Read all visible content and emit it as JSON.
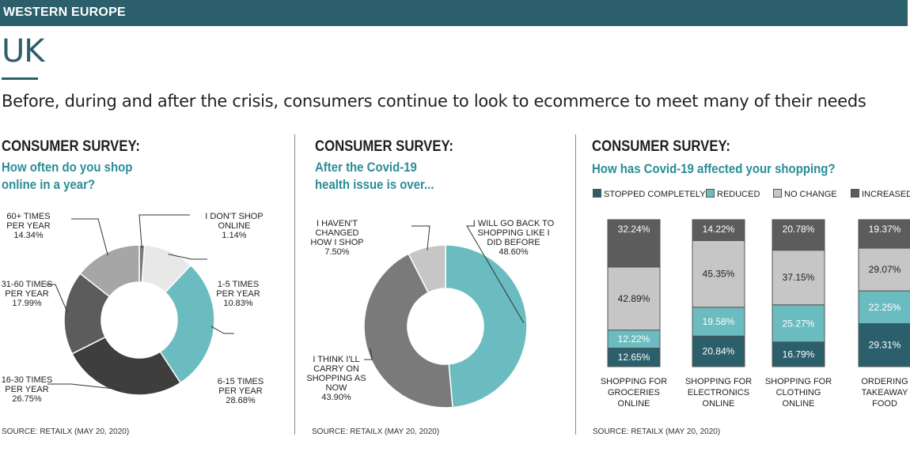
{
  "header": {
    "region": "WESTERN EUROPE",
    "country": "UK",
    "subtitle": "Before, during and after the crisis, consumers continue to look to ecommerce to meet many of their needs"
  },
  "colors": {
    "teal_dark": "#2b5f6b",
    "teal_light": "#6bbcc0",
    "gray_light": "#c6c6c6",
    "gray_dark": "#5c5c5c",
    "gray_mid": "#7a7a7a",
    "black_gray": "#3e3e3e",
    "white_gray": "#e8e8e8"
  },
  "panels": [
    {
      "title": "CONSUMER SURVEY:",
      "question_line1": "How often do you shop",
      "question_line2": "online in a year?",
      "source": "SOURCE: RETAILX (MAY 20, 2020)"
    },
    {
      "title": "CONSUMER SURVEY:",
      "question_line1": "After the Covid-19",
      "question_line2": "health issue is over...",
      "source": "SOURCE: RETAILX (MAY 20, 2020)"
    },
    {
      "title": "CONSUMER SURVEY:",
      "question_line1": "How has Covid-19 affected your shopping?",
      "question_line2": "",
      "source": "SOURCE: RETAILX (MAY 20, 2020)"
    }
  ],
  "chart_data": [
    {
      "type": "pie",
      "variant": "donut",
      "title": "How often do you shop online in a year?",
      "slices": [
        {
          "name": "I DON'T SHOP ONLINE",
          "label_lines": [
            "I DON'T SHOP",
            "ONLINE"
          ],
          "value": 1.14,
          "value_label": "1.14%",
          "color": "#7a7a7a"
        },
        {
          "name": "1-5 TIMES PER YEAR",
          "label_lines": [
            "1-5 TIMES",
            "PER YEAR"
          ],
          "value": 10.83,
          "value_label": "10.83%",
          "color": "#e8e8e8"
        },
        {
          "name": "6-15 TIMES PER YEAR",
          "label_lines": [
            "6-15 TIMES",
            "PER YEAR"
          ],
          "value": 28.68,
          "value_label": "28.68%",
          "color": "#6bbcc0"
        },
        {
          "name": "16-30 TIMES PER YEAR",
          "label_lines": [
            "16-30 TIMES",
            "PER YEAR"
          ],
          "value": 26.75,
          "value_label": "26.75%",
          "color": "#3e3e3e"
        },
        {
          "name": "31-60 TIMES PER YEAR",
          "label_lines": [
            "31-60 TIMES",
            "PER YEAR"
          ],
          "value": 17.99,
          "value_label": "17.99%",
          "color": "#5c5c5c"
        },
        {
          "name": "60+ TIMES PER YEAR",
          "label_lines": [
            "60+ TIMES",
            "PER YEAR"
          ],
          "value": 14.34,
          "value_label": "14.34%",
          "color": "#a6a6a6"
        }
      ]
    },
    {
      "type": "pie",
      "variant": "donut",
      "title": "After the Covid-19 health issue is over...",
      "slices": [
        {
          "name": "I WILL GO BACK TO SHOPPING LIKE I DID BEFORE",
          "label_lines": [
            "I WILL GO BACK TO",
            "SHOPPING LIKE I",
            "DID BEFORE"
          ],
          "value": 48.6,
          "value_label": "48.60%",
          "color": "#6bbcc0"
        },
        {
          "name": "I THINK I'LL CARRY ON SHOPPING AS NOW",
          "label_lines": [
            "I THINK I'LL",
            "CARRY ON",
            "SHOPPING AS",
            "NOW"
          ],
          "value": 43.9,
          "value_label": "43.90%",
          "color": "#7a7a7a"
        },
        {
          "name": "I HAVEN'T CHANGED HOW I SHOP",
          "label_lines": [
            "I HAVEN'T",
            "CHANGED",
            "HOW I SHOP"
          ],
          "value": 7.5,
          "value_label": "7.50%",
          "color": "#c6c6c6"
        }
      ]
    },
    {
      "type": "bar",
      "variant": "stacked-100",
      "title": "How has Covid-19 affected your shopping?",
      "legend": [
        "STOPPED COMPLETELY",
        "REDUCED",
        "NO CHANGE",
        "INCREASED"
      ],
      "categories": [
        {
          "name": "SHOPPING FOR GROCERIES ONLINE",
          "label_lines": [
            "SHOPPING FOR",
            "GROCERIES",
            "ONLINE"
          ]
        },
        {
          "name": "SHOPPING FOR ELECTRONICS ONLINE",
          "label_lines": [
            "SHOPPING FOR",
            "ELECTRONICS",
            "ONLINE"
          ]
        },
        {
          "name": "SHOPPING FOR CLOTHING ONLINE",
          "label_lines": [
            "SHOPPING FOR",
            "CLOTHING",
            "ONLINE"
          ]
        },
        {
          "name": "ORDERING TAKEAWAY FOOD",
          "label_lines": [
            "ORDERING",
            "TAKEAWAY",
            "FOOD"
          ]
        }
      ],
      "series": [
        {
          "name": "STOPPED COMPLETELY",
          "color": "#2b5f6b",
          "text_color": "#ffffff",
          "values": [
            12.65,
            20.84,
            16.79,
            29.31
          ],
          "value_labels": [
            "12.65%",
            "20.84%",
            "16.79%",
            "29.31%"
          ]
        },
        {
          "name": "REDUCED",
          "color": "#6bbcc0",
          "text_color": "#ffffff",
          "values": [
            12.22,
            19.58,
            25.27,
            22.25
          ],
          "value_labels": [
            "12.22%",
            "19.58%",
            "25.27%",
            "22.25%"
          ]
        },
        {
          "name": "NO CHANGE",
          "color": "#c6c6c6",
          "text_color": "#222222",
          "values": [
            42.89,
            45.35,
            37.15,
            29.07
          ],
          "value_labels": [
            "42.89%",
            "45.35%",
            "37.15%",
            "29.07%"
          ]
        },
        {
          "name": "INCREASED",
          "color": "#5c5c5c",
          "text_color": "#ffffff",
          "values": [
            32.24,
            14.22,
            20.78,
            19.37
          ],
          "value_labels": [
            "32.24%",
            "14.22%",
            "20.78%",
            "19.37%"
          ]
        }
      ]
    }
  ]
}
